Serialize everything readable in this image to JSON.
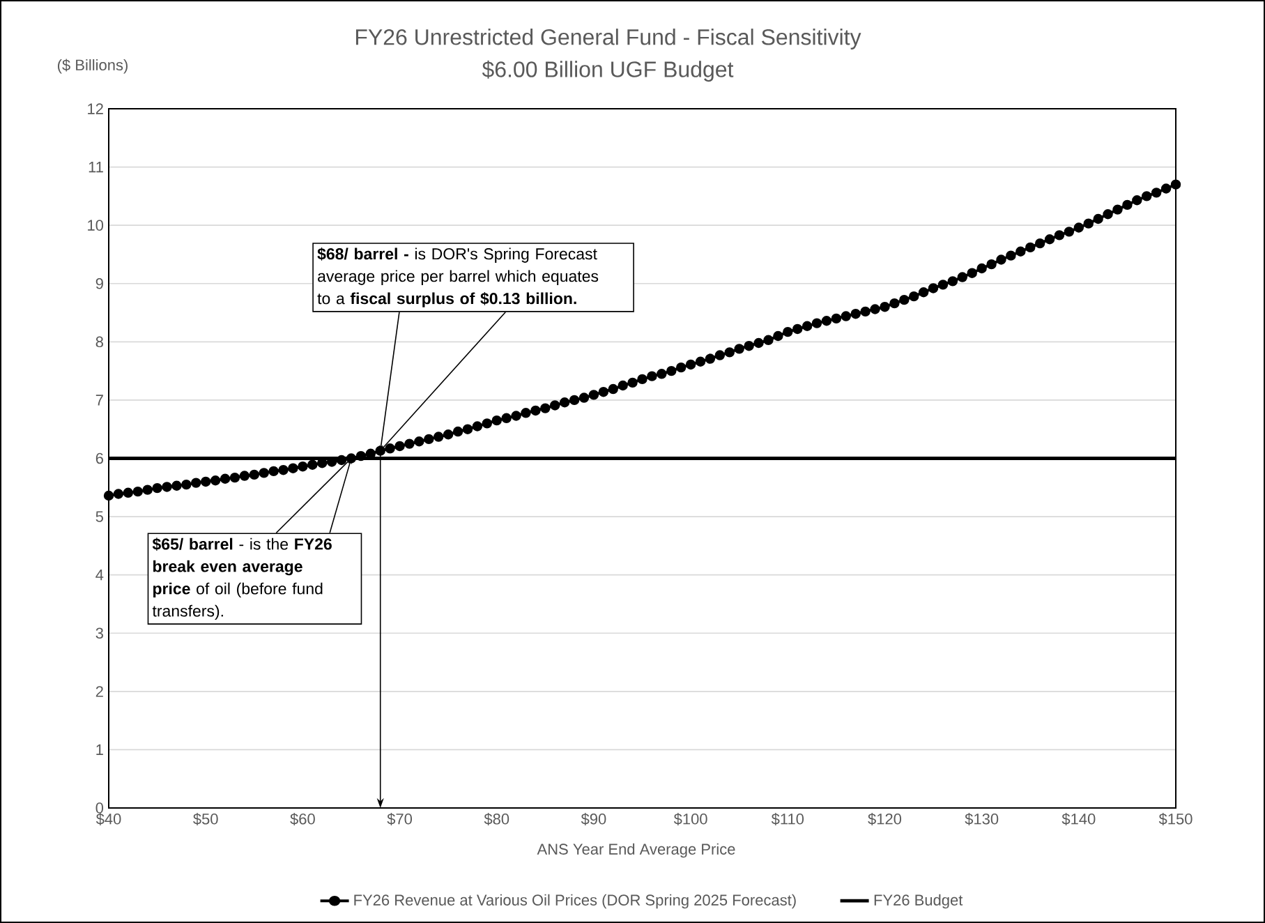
{
  "chart_data": {
    "type": "line",
    "title": "FY26 Unrestricted General Fund - Fiscal Sensitivity",
    "subtitle": "$6.00 Billion UGF Budget",
    "ylabel": "($ Billions)",
    "xlabel": "ANS Year End Average Price",
    "xlim": [
      40,
      150
    ],
    "ylim": [
      0,
      12
    ],
    "xticks": [
      {
        "value": 40,
        "label": "$40"
      },
      {
        "value": 50,
        "label": "$50"
      },
      {
        "value": 60,
        "label": "$60"
      },
      {
        "value": 70,
        "label": "$70"
      },
      {
        "value": 80,
        "label": "$80"
      },
      {
        "value": 90,
        "label": "$90"
      },
      {
        "value": 100,
        "label": "$100"
      },
      {
        "value": 110,
        "label": "$110"
      },
      {
        "value": 120,
        "label": "$120"
      },
      {
        "value": 130,
        "label": "$130"
      },
      {
        "value": 140,
        "label": "$140"
      },
      {
        "value": 150,
        "label": "$150"
      }
    ],
    "yticks": [
      0,
      1,
      2,
      3,
      4,
      5,
      6,
      7,
      8,
      9,
      10,
      11,
      12
    ],
    "grid": "y",
    "legend": "bottom",
    "series": [
      {
        "name": "FY26 Revenue at Various Oil Prices (DOR Spring 2025 Forecast)",
        "color": "#000000",
        "marker": "circle",
        "x": [
          40,
          41,
          42,
          43,
          44,
          45,
          46,
          47,
          48,
          49,
          50,
          51,
          52,
          53,
          54,
          55,
          56,
          57,
          58,
          59,
          60,
          61,
          62,
          63,
          64,
          65,
          66,
          67,
          68,
          69,
          70,
          71,
          72,
          73,
          74,
          75,
          76,
          77,
          78,
          79,
          80,
          81,
          82,
          83,
          84,
          85,
          86,
          87,
          88,
          89,
          90,
          91,
          92,
          93,
          94,
          95,
          96,
          97,
          98,
          99,
          100,
          101,
          102,
          103,
          104,
          105,
          106,
          107,
          108,
          109,
          110,
          111,
          112,
          113,
          114,
          115,
          116,
          117,
          118,
          119,
          120,
          121,
          122,
          123,
          124,
          125,
          126,
          127,
          128,
          129,
          130,
          131,
          132,
          133,
          134,
          135,
          136,
          137,
          138,
          139,
          140,
          141,
          142,
          143,
          144,
          145,
          146,
          147,
          148,
          149,
          150
        ],
        "values": [
          5.36,
          5.39,
          5.41,
          5.43,
          5.46,
          5.49,
          5.51,
          5.53,
          5.55,
          5.58,
          5.6,
          5.62,
          5.65,
          5.67,
          5.7,
          5.72,
          5.75,
          5.78,
          5.8,
          5.83,
          5.86,
          5.89,
          5.92,
          5.94,
          5.97,
          6.0,
          6.04,
          6.08,
          6.13,
          6.17,
          6.21,
          6.25,
          6.29,
          6.33,
          6.37,
          6.41,
          6.46,
          6.5,
          6.55,
          6.6,
          6.65,
          6.69,
          6.73,
          6.78,
          6.82,
          6.86,
          6.91,
          6.96,
          7.0,
          7.04,
          7.09,
          7.14,
          7.19,
          7.25,
          7.3,
          7.36,
          7.41,
          7.45,
          7.5,
          7.56,
          7.61,
          7.66,
          7.71,
          7.77,
          7.82,
          7.88,
          7.93,
          7.98,
          8.03,
          8.1,
          8.17,
          8.22,
          8.27,
          8.32,
          8.36,
          8.4,
          8.44,
          8.48,
          8.52,
          8.56,
          8.6,
          8.66,
          8.72,
          8.78,
          8.85,
          8.92,
          8.98,
          9.04,
          9.11,
          9.18,
          9.26,
          9.33,
          9.41,
          9.48,
          9.55,
          9.62,
          9.69,
          9.76,
          9.83,
          9.89,
          9.96,
          10.03,
          10.11,
          10.19,
          10.27,
          10.35,
          10.43,
          10.5,
          10.56,
          10.63,
          10.7
        ]
      },
      {
        "name": "FY26 Budget",
        "color": "#000000",
        "marker": "none",
        "x": [
          40,
          150
        ],
        "values": [
          6,
          6
        ]
      }
    ],
    "annotations": [
      {
        "text": "**$68/ barrel -** is DOR's Spring Forecast average price per barrel which equates to a **fiscal surplus of $0.13 billion.**",
        "x": 68,
        "y": 6.13
      },
      {
        "text": "**$65/ barrel** - is the **FY26 break even average price** of oil (before fund transfers).",
        "x": 65,
        "y": 6
      }
    ]
  }
}
